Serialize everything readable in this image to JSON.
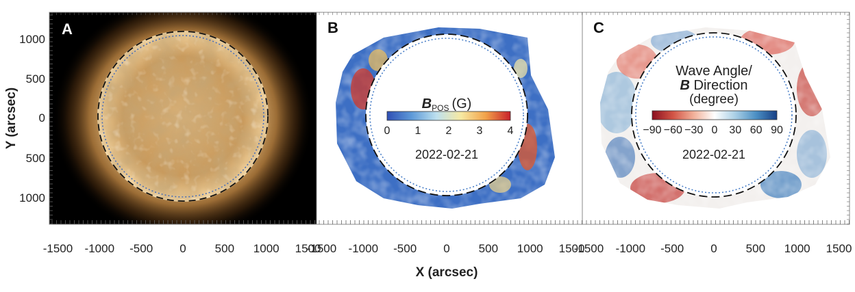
{
  "figure": {
    "x_axis_title": "X (arcsec)",
    "y_axis_title": "Y (arcsec)",
    "y_tick_labels": [
      "1000",
      "500",
      "0",
      "500",
      "1000"
    ],
    "x_tick_labels": [
      "-1500",
      "-1000",
      "-500",
      "0",
      "500",
      "1000",
      "1500"
    ],
    "panels": [
      {
        "letter": "A",
        "kind": "euv-image"
      },
      {
        "letter": "B",
        "kind": "magnetic-field-map",
        "colorbar": {
          "title_symbol": "B",
          "title_subscript": "POS",
          "title_unit": "(G)",
          "ticks": [
            "0",
            "1",
            "2",
            "3",
            "4"
          ],
          "colors": [
            "#2f4fb4",
            "#5e9ad8",
            "#bde0ef",
            "#f7e9a2",
            "#f2a24a",
            "#c8202a"
          ]
        },
        "date": "2022-02-21"
      },
      {
        "letter": "C",
        "kind": "angle-map",
        "colorbar": {
          "title_line1": "Wave Angle/",
          "title_symbol": "B",
          "title_line2_rest": " Direction",
          "title_line3": "(degree)",
          "ticks": [
            "−90",
            "−60",
            "−30",
            "0",
            "30",
            "60",
            "90"
          ],
          "colors": [
            "#8b1020",
            "#d25445",
            "#f2b19a",
            "#ffffff",
            "#a9cfe5",
            "#4b8fc4",
            "#163f85"
          ]
        },
        "date": "2022-02-21"
      }
    ]
  }
}
